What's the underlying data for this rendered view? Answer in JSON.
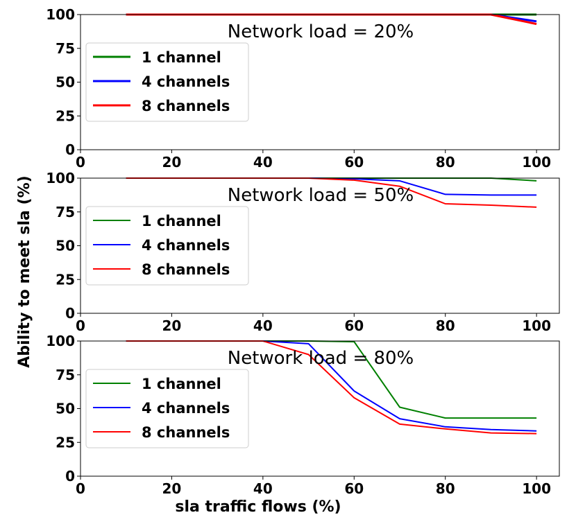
{
  "figure": {
    "ylabel": "Ability to meet sla (%)",
    "xlabel": "sla traffic flows (%)"
  },
  "chart_data": [
    {
      "type": "line",
      "annotation": "Network load = 20%",
      "xlim": [
        0,
        105
      ],
      "ylim": [
        0,
        100
      ],
      "xticks": [
        "0",
        "20",
        "40",
        "60",
        "80",
        "100"
      ],
      "yticks": [
        "0",
        "25",
        "50",
        "75",
        "100"
      ],
      "legend_position": "left",
      "x": [
        10,
        20,
        30,
        40,
        50,
        60,
        70,
        80,
        90,
        100
      ],
      "series": [
        {
          "name": "1 channel",
          "color": "#008000",
          "values": [
            100,
            100,
            100,
            100,
            100,
            100,
            100,
            100,
            100,
            100
          ]
        },
        {
          "name": "4 channels",
          "color": "#0000ff",
          "values": [
            100,
            100,
            100,
            100,
            100,
            100,
            100,
            100,
            100,
            95
          ]
        },
        {
          "name": "8 channels",
          "color": "#ff0000",
          "values": [
            100,
            100,
            100,
            100,
            100,
            100,
            100,
            100,
            100,
            93
          ]
        }
      ]
    },
    {
      "type": "line",
      "annotation": "Network load = 50%",
      "xlim": [
        0,
        105
      ],
      "ylim": [
        0,
        100
      ],
      "xticks": [
        "0",
        "20",
        "40",
        "60",
        "80",
        "100"
      ],
      "yticks": [
        "0",
        "25",
        "50",
        "75",
        "100"
      ],
      "legend_position": "left",
      "x": [
        10,
        20,
        30,
        40,
        50,
        60,
        70,
        80,
        90,
        100
      ],
      "series": [
        {
          "name": "1 channel",
          "color": "#008000",
          "values": [
            100,
            100,
            100,
            100,
            100,
            100,
            100,
            100,
            100,
            98
          ]
        },
        {
          "name": "4 channels",
          "color": "#0000ff",
          "values": [
            100,
            100,
            100,
            100,
            100,
            99.5,
            98,
            88,
            87.5,
            87.5
          ]
        },
        {
          "name": "8 channels",
          "color": "#ff0000",
          "values": [
            100,
            100,
            100,
            100,
            100,
            98.5,
            94,
            81,
            80,
            78.5
          ]
        }
      ]
    },
    {
      "type": "line",
      "annotation": "Network load = 80%",
      "xlim": [
        0,
        105
      ],
      "ylim": [
        0,
        100
      ],
      "xticks": [
        "0",
        "20",
        "40",
        "60",
        "80",
        "100"
      ],
      "yticks": [
        "0",
        "25",
        "50",
        "75",
        "100"
      ],
      "legend_position": "left",
      "x": [
        10,
        20,
        30,
        40,
        50,
        60,
        70,
        80,
        90,
        100
      ],
      "series": [
        {
          "name": "1 channel",
          "color": "#008000",
          "values": [
            100,
            100,
            100,
            100,
            100,
            99.5,
            51,
            43,
            43,
            43
          ]
        },
        {
          "name": "4 channels",
          "color": "#0000ff",
          "values": [
            100,
            100,
            100,
            100,
            98,
            63,
            42.5,
            36.5,
            34.5,
            33.5
          ]
        },
        {
          "name": "8 channels",
          "color": "#ff0000",
          "values": [
            100,
            100,
            100,
            100,
            90,
            58,
            38.5,
            35,
            32,
            31.5
          ]
        }
      ]
    }
  ]
}
